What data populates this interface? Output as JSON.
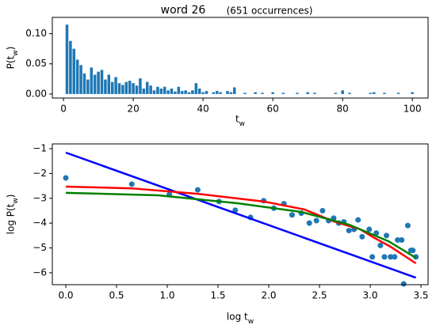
{
  "chart_data": [
    {
      "type": "bar",
      "title": "word 26",
      "subtitle": "(651 occurrences)",
      "x_label": "t_w",
      "y_label": "P(t_w)",
      "color": "#1f77b4",
      "x": [
        1,
        2,
        3,
        4,
        5,
        6,
        7,
        8,
        9,
        10,
        11,
        12,
        13,
        14,
        15,
        16,
        17,
        18,
        19,
        20,
        21,
        22,
        23,
        24,
        25,
        26,
        27,
        28,
        29,
        30,
        31,
        32,
        33,
        34,
        35,
        36,
        37,
        38,
        39,
        40,
        41,
        43,
        44,
        45,
        47,
        48,
        49,
        52,
        55,
        57,
        60,
        63,
        67,
        70,
        72,
        78,
        80,
        82,
        88,
        89,
        92,
        96,
        100
      ],
      "values": [
        0.115,
        0.088,
        0.075,
        0.057,
        0.048,
        0.034,
        0.024,
        0.044,
        0.032,
        0.037,
        0.04,
        0.024,
        0.032,
        0.02,
        0.028,
        0.018,
        0.015,
        0.02,
        0.022,
        0.018,
        0.014,
        0.026,
        0.009,
        0.02,
        0.014,
        0.006,
        0.012,
        0.009,
        0.012,
        0.006,
        0.009,
        0.004,
        0.012,
        0.005,
        0.006,
        0.003,
        0.006,
        0.018,
        0.009,
        0.003,
        0.005,
        0.003,
        0.005,
        0.003,
        0.005,
        0.003,
        0.011,
        0.002,
        0.003,
        0.002,
        0.003,
        0.002,
        0.002,
        0.003,
        0.002,
        0.002,
        0.006,
        0.002,
        0.002,
        0.003,
        0.002,
        0.002,
        0.003
      ],
      "xlim": [
        -3.2,
        104.5
      ],
      "ylim": [
        -0.0067,
        0.127
      ],
      "xticks": [
        0,
        20,
        40,
        60,
        80,
        100
      ],
      "yticks": [
        {
          "value": 0,
          "label": "0.00"
        },
        {
          "value": 0.05,
          "label": "0.05"
        },
        {
          "value": 0.1,
          "label": "0.10"
        }
      ]
    },
    {
      "type": "line",
      "x_label": "log t_w",
      "y_label": "log P(t_w)",
      "xlim": [
        -0.133,
        3.57
      ],
      "ylim": [
        -6.48,
        -0.81
      ],
      "xticks": [
        {
          "value": 0,
          "label": "0.0"
        },
        0.5,
        {
          "value": 1,
          "label": "1.0"
        },
        1.5,
        {
          "value": 2,
          "label": "2.0"
        },
        2.5,
        {
          "value": 3,
          "label": "3.0"
        },
        3.5
      ],
      "yticks": [
        {
          "value": -1,
          "label": "−1"
        },
        {
          "value": -2,
          "label": "−2"
        },
        {
          "value": -3,
          "label": "−3"
        },
        {
          "value": -4,
          "label": "−4"
        },
        {
          "value": -5,
          "label": "−5"
        },
        {
          "value": -6,
          "label": "−6"
        }
      ],
      "series": [
        {
          "type": "scatter",
          "color": "#1f77b4",
          "x": [
            0,
            0.65,
            1.02,
            1.3,
            1.51,
            1.67,
            1.82,
            1.95,
            2.05,
            2.15,
            2.23,
            2.32,
            2.4,
            2.47,
            2.53,
            2.59,
            2.64,
            2.69,
            2.74,
            2.79,
            2.84,
            2.88,
            2.92,
            2.99,
            3.02,
            3.06,
            3.1,
            3.14,
            3.16,
            3.2,
            3.24,
            3.27,
            3.31,
            3.33,
            3.37,
            3.4,
            3.42,
            3.45
          ],
          "values": [
            -2.18,
            -2.43,
            -2.85,
            -2.66,
            -3.13,
            -3.48,
            -3.77,
            -3.1,
            -3.4,
            -3.22,
            -3.67,
            -3.6,
            -4.0,
            -3.9,
            -3.5,
            -3.9,
            -3.8,
            -4.0,
            -3.95,
            -4.3,
            -4.25,
            -3.87,
            -4.55,
            -4.25,
            -5.36,
            -4.4,
            -4.9,
            -5.36,
            -4.5,
            -5.36,
            -5.36,
            -4.68,
            -4.68,
            -6.45,
            -4.1,
            -5.1,
            -5.1,
            -5.36
          ]
        },
        {
          "type": "line",
          "color": "#0000ff",
          "x": [
            0,
            3.45
          ],
          "values": [
            -1.16,
            -6.2
          ]
        },
        {
          "type": "line",
          "color": "#ff0000",
          "x": [
            0,
            0.65,
            1.3,
            1.95,
            2.35,
            2.64,
            2.9,
            3.03,
            3.2,
            3.45
          ],
          "values": [
            -2.53,
            -2.6,
            -2.82,
            -3.13,
            -3.45,
            -3.93,
            -4.25,
            -4.57,
            -4.95,
            -5.62
          ]
        },
        {
          "type": "line",
          "color": "#008000",
          "x": [
            0,
            0.91,
            1.69,
            2.32,
            2.79,
            3.18,
            3.45
          ],
          "values": [
            -2.78,
            -2.88,
            -3.2,
            -3.55,
            -4.06,
            -4.73,
            -5.4
          ]
        }
      ]
    }
  ]
}
